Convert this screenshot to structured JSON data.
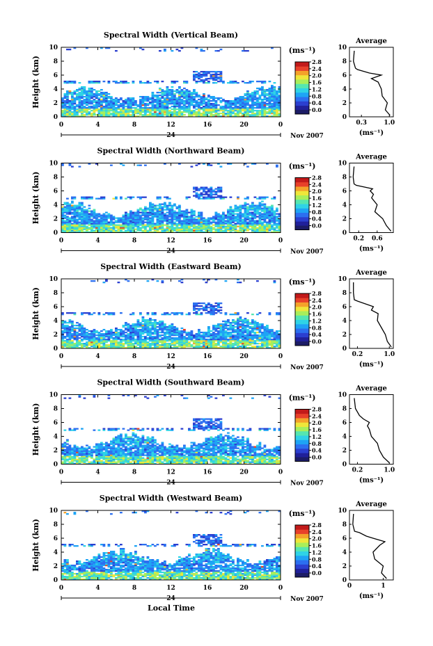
{
  "figure": {
    "xlabel": "Local Time",
    "colorbar_unit": "(ms⁻¹)",
    "colorbar_ticks": [
      "0.0",
      "0.4",
      "0.8",
      "1.2",
      "1.6",
      "2.0",
      "2.4",
      "2.8"
    ],
    "date_mid": "24",
    "date_right": "Nov 2007",
    "avg_title": "Average",
    "avg_xlabel": "(ms⁻¹)",
    "colormap": [
      "#20209a",
      "#2b3fd0",
      "#2c6ff0",
      "#1ea4f5",
      "#2fd3e6",
      "#55e6b0",
      "#a9ee5a",
      "#efe63a",
      "#f4a22a",
      "#e8402a",
      "#c21a1a"
    ]
  },
  "chart_data": [
    {
      "type": "heatmap",
      "title": "Spectral Width (Vertical Beam)",
      "ylabel": "Height (km)",
      "xticks": [
        "0",
        "4",
        "8",
        "12",
        "16",
        "20",
        "0"
      ],
      "yticks": [
        "0",
        "2",
        "4",
        "6",
        "8",
        "10"
      ],
      "xlim": [
        0,
        24
      ],
      "ylim": [
        0,
        10
      ],
      "clim": [
        0,
        2.8
      ],
      "avg_profile": {
        "type": "line",
        "xlim": [
          0,
          1.1
        ],
        "xticks": [
          {
            "v": 0.3,
            "label": "0.3"
          },
          {
            "v": 1.0,
            "label": "1.0"
          }
        ],
        "heights": [
          0.2,
          1,
          2,
          3,
          4,
          5,
          5.5,
          6,
          6.3,
          6.8,
          7,
          8,
          9.5
        ],
        "values": [
          1.02,
          0.9,
          0.95,
          0.82,
          0.8,
          0.72,
          0.55,
          0.8,
          0.5,
          0.2,
          0.15,
          0.1,
          0.12
        ]
      }
    },
    {
      "type": "heatmap",
      "title": "Spectral Width (Northward Beam)",
      "ylabel": "Height (km)",
      "xticks": [
        "0",
        "4",
        "8",
        "12",
        "16",
        "20",
        "0"
      ],
      "yticks": [
        "0",
        "2",
        "4",
        "6",
        "8",
        "10"
      ],
      "xlim": [
        0,
        24
      ],
      "ylim": [
        0,
        10
      ],
      "clim": [
        0,
        2.8
      ],
      "avg_profile": {
        "type": "line",
        "xlim": [
          0,
          0.95
        ],
        "xticks": [
          {
            "v": 0.2,
            "label": "0.2"
          },
          {
            "v": 0.6,
            "label": "0.6"
          }
        ],
        "heights": [
          0.2,
          1,
          2,
          3,
          4,
          5,
          5.5,
          6,
          6.3,
          6.8,
          7,
          8,
          9.5
        ],
        "values": [
          0.9,
          0.8,
          0.72,
          0.55,
          0.6,
          0.48,
          0.52,
          0.45,
          0.5,
          0.15,
          0.1,
          0.08,
          0.1
        ]
      }
    },
    {
      "type": "heatmap",
      "title": "Spectral Width (Eastward Beam)",
      "ylabel": "Height (km)",
      "xticks": [
        "0",
        "4",
        "8",
        "12",
        "16",
        "20",
        "0"
      ],
      "yticks": [
        "0",
        "2",
        "4",
        "6",
        "8",
        "10"
      ],
      "xlim": [
        0,
        24
      ],
      "ylim": [
        0,
        10
      ],
      "clim": [
        0,
        2.8
      ],
      "avg_profile": {
        "type": "line",
        "xlim": [
          0,
          1.1
        ],
        "xticks": [
          {
            "v": 0.2,
            "label": "0.2"
          },
          {
            "v": 1.0,
            "label": "1.0"
          }
        ],
        "heights": [
          0.2,
          1,
          2,
          3,
          4,
          5,
          5.5,
          6,
          6.3,
          6.8,
          7,
          8,
          9.5
        ],
        "values": [
          1.05,
          0.95,
          0.9,
          0.8,
          0.7,
          0.72,
          0.55,
          0.6,
          0.45,
          0.2,
          0.12,
          0.1,
          0.1
        ]
      }
    },
    {
      "type": "heatmap",
      "title": "Spectral Width (Southward Beam)",
      "ylabel": "Height (km)",
      "xticks": [
        "0",
        "4",
        "8",
        "12",
        "16",
        "20",
        "0"
      ],
      "yticks": [
        "0",
        "2",
        "4",
        "6",
        "8",
        "10"
      ],
      "xlim": [
        0,
        24
      ],
      "ylim": [
        0,
        10
      ],
      "clim": [
        0,
        2.8
      ],
      "avg_profile": {
        "type": "line",
        "xlim": [
          0,
          1.1
        ],
        "xticks": [
          {
            "v": 0.2,
            "label": "0.2"
          },
          {
            "v": 1.0,
            "label": "1.0"
          }
        ],
        "heights": [
          0.2,
          1,
          2,
          3,
          4,
          5,
          5.5,
          6,
          6.5,
          7,
          8,
          9.5
        ],
        "values": [
          1.0,
          0.85,
          0.75,
          0.7,
          0.55,
          0.5,
          0.45,
          0.5,
          0.35,
          0.25,
          0.15,
          0.12
        ]
      }
    },
    {
      "type": "heatmap",
      "title": "Spectral Width (Westward Beam)",
      "ylabel": "Height (km)",
      "xticks": [
        "0",
        "4",
        "8",
        "12",
        "16",
        "20",
        "0"
      ],
      "yticks": [
        "0",
        "2",
        "4",
        "6",
        "8",
        "10"
      ],
      "xlim": [
        0,
        24
      ],
      "ylim": [
        0,
        10
      ],
      "clim": [
        0,
        2.8
      ],
      "avg_profile": {
        "type": "line",
        "xlim": [
          0,
          1.3
        ],
        "xticks": [
          {
            "v": 0.0,
            "label": "0"
          },
          {
            "v": 1.0,
            "label": "1"
          }
        ],
        "heights": [
          0.2,
          1,
          2,
          3,
          4,
          5,
          5.5,
          6,
          6.3,
          6.8,
          7,
          8,
          9.5
        ],
        "values": [
          1.1,
          0.95,
          1.0,
          0.75,
          0.7,
          0.9,
          1.05,
          0.7,
          0.5,
          0.3,
          0.15,
          0.1,
          0.12
        ]
      }
    }
  ]
}
